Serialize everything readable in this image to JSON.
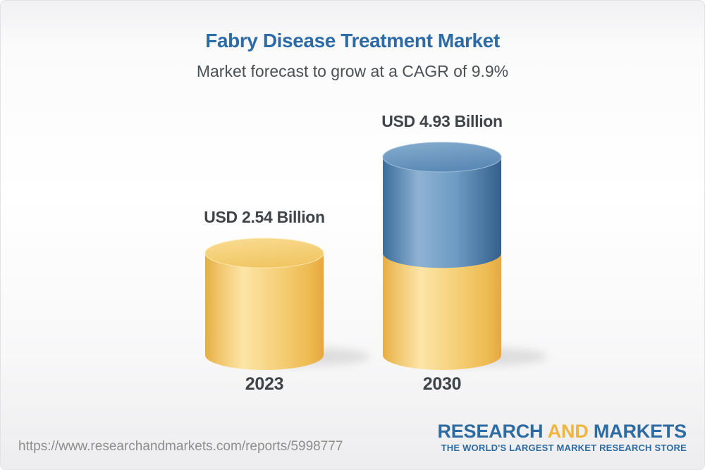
{
  "card": {
    "title": "Fabry Disease Treatment Market",
    "subtitle": "Market forecast to grow at a CAGR of 9.9%"
  },
  "chart_data": {
    "type": "bar",
    "subtype": "3d-cylinder",
    "title": "Fabry Disease Treatment Market",
    "annotation": "Market forecast to grow at a CAGR of 9.9%",
    "cagr_percent": 9.9,
    "categories": [
      "2023",
      "2030"
    ],
    "values": [
      2.54,
      4.93
    ],
    "value_labels": [
      "USD 2.54 Billion",
      "USD 4.93 Billion"
    ],
    "unit": "USD Billion",
    "ylim": [
      0,
      5.5
    ],
    "grid": "off",
    "legend": "none",
    "colors": {
      "base_segment": "#f2c566",
      "growth_segment": "#5a89b5",
      "label_text": "#3f4449",
      "title_text": "#2c6ba6"
    },
    "notes": "2030 bar is stacked: bottom segment equals 2023 value (yellow), top segment is growth to 4.93 (blue)"
  },
  "footer": {
    "url": "https://www.researchandmarkets.com/reports/5998777",
    "logo": {
      "part1": "RESEARCH",
      "part2": "AND",
      "part3": "MARKETS",
      "tagline": "THE WORLD'S LARGEST MARKET RESEARCH STORE",
      "blue": "#2d6ba3",
      "gold": "#f0b53e"
    }
  }
}
